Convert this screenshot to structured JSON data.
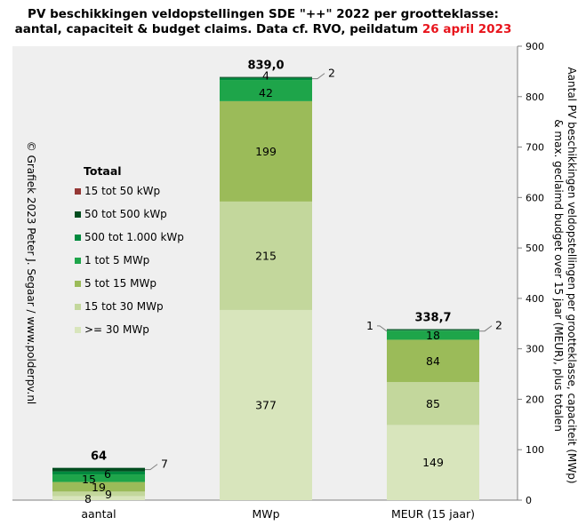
{
  "chart_data": {
    "type": "bar",
    "stacked": true,
    "title_line1": "PV beschikkingen  veldopstellingen SDE \"++\" 2022 per grootteklasse:",
    "title_line2": "aantal, capaciteit & budget claims. Data cf. RVO, peildatum",
    "title_date": "26 april 2023",
    "ylabel_line1": "Aantal PV beschikkingen veldopstellingen per grootteklasse, capaciteit (MWp)",
    "ylabel_line2": "& max. geclaimd budget over 15 jaar (MEUR), plus totalen",
    "copyright": "© Grafiek 2023 Peter J. Segaar / www.polderpv.nl",
    "ylim": [
      0,
      900
    ],
    "yticks": [
      "0",
      "100",
      "200",
      "300",
      "400",
      "500",
      "600",
      "700",
      "800",
      "900"
    ],
    "grid": false,
    "legend_position": "left",
    "legend_title": "Totaal",
    "categories": [
      "aantal",
      "MWp",
      "MEUR (15 jaar)"
    ],
    "totals": [
      "64",
      "839,0",
      "338,7"
    ],
    "total_values": [
      64,
      839.0,
      338.7
    ],
    "series": [
      {
        "name": ">= 30 MWp",
        "color": "#d8e5bc",
        "values": [
          8,
          377,
          149
        ],
        "labels": [
          "8",
          "377",
          "149"
        ]
      },
      {
        "name": "15 tot 30 MWp",
        "color": "#c3d79c",
        "values": [
          9,
          215,
          85
        ],
        "labels": [
          "9",
          "215",
          "85"
        ]
      },
      {
        "name": "5 tot 15 MWp",
        "color": "#9bbb59",
        "values": [
          19,
          199,
          84
        ],
        "labels": [
          "19",
          "199",
          "84"
        ]
      },
      {
        "name": "1 tot 5 MWp",
        "color": "#1ea54a",
        "values": [
          15,
          42,
          18
        ],
        "labels": [
          "15",
          "42",
          "18"
        ]
      },
      {
        "name": "500 tot 1.000 kWp",
        "color": "#008a3e",
        "values": [
          6,
          4,
          1
        ],
        "labels": [
          "6",
          "4",
          "1"
        ]
      },
      {
        "name": "50 tot 500 kWp",
        "color": "#004d1f",
        "values": [
          7,
          2,
          2
        ],
        "labels": [
          "7",
          "2",
          "2"
        ]
      },
      {
        "name": "15 tot 50 kWp",
        "color": "#953735",
        "values": [
          0,
          0,
          0
        ],
        "labels": [
          "",
          "",
          ""
        ]
      }
    ]
  },
  "colors": {
    "plot_background": "#efefef",
    "title_date": "#e8141c"
  }
}
